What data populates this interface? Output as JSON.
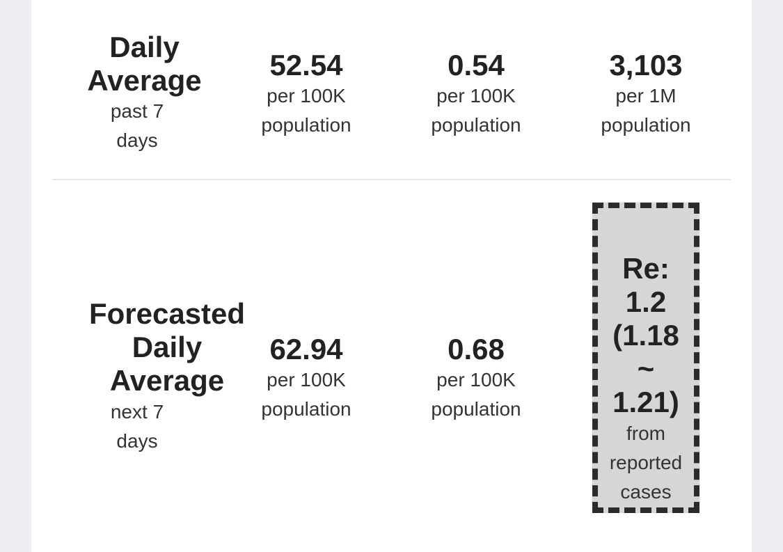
{
  "past": {
    "title_line1": "Daily",
    "title_line2": "Average",
    "sub_line1": "past 7",
    "sub_line2": "days",
    "metrics": [
      {
        "value": "52.54",
        "unit_line1": "per 100K",
        "unit_line2": "population"
      },
      {
        "value": "0.54",
        "unit_line1": "per 100K",
        "unit_line2": "population"
      },
      {
        "value": "3,103",
        "unit_line1": "per 1M",
        "unit_line2": "population"
      }
    ]
  },
  "forecast": {
    "title_line1": "Forecasted",
    "title_line2": "Daily",
    "title_line3": "Average",
    "sub_line1": "next 7",
    "sub_line2": "days",
    "metrics": [
      {
        "value": "62.94",
        "unit_line1": "per 100K",
        "unit_line2": "population"
      },
      {
        "value": "0.68",
        "unit_line1": "per 100K",
        "unit_line2": "population"
      }
    ],
    "re": {
      "line1": "Re:",
      "line2": "1.2",
      "line3": "(1.18",
      "line4": "~",
      "line5": "1.21)",
      "source_line1": "from",
      "source_line2": "reported",
      "source_line3": "cases"
    }
  },
  "colors": {
    "page_background": "#eceef2",
    "card_background": "#ffffff",
    "highlight_box": "#d6d6d6",
    "highlight_border": "#2b2b2b",
    "text": "#222222"
  }
}
